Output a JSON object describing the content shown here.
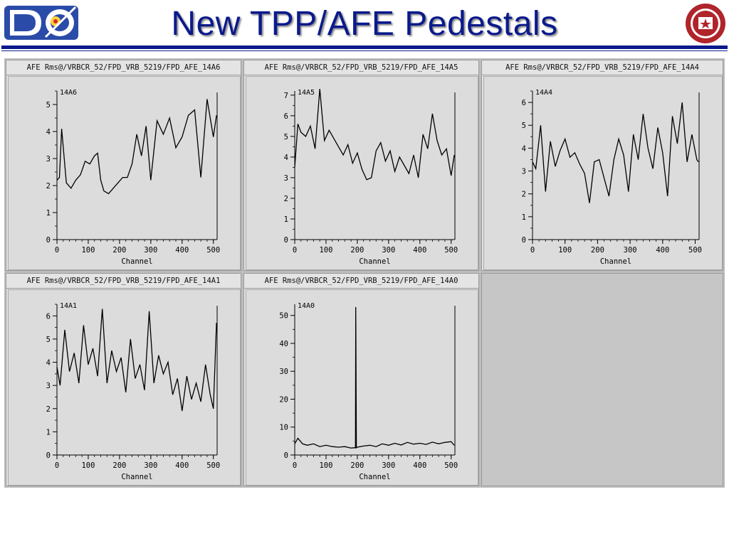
{
  "page": {
    "title": "New TPP/AFE Pedestals",
    "colors": {
      "title": "#0a1a8c",
      "rule": "#0a1a8c",
      "panel": "#e4e4e4",
      "empty_panel": "#c6c6c6"
    },
    "logos": [
      "d0-experiment-logo",
      "university-seal"
    ]
  },
  "chart_data": [
    {
      "type": "line",
      "window_title": "AFE Rms@/VRBCR_52/FPD_VRB_5219/FPD_AFE_14A6",
      "series": [
        {
          "name": "14A6",
          "x": [
            0,
            8,
            15,
            30,
            45,
            60,
            75,
            90,
            105,
            120,
            130,
            140,
            150,
            165,
            180,
            195,
            210,
            225,
            240,
            255,
            270,
            285,
            300,
            320,
            340,
            360,
            380,
            400,
            420,
            440,
            460,
            480,
            500,
            510
          ],
          "values": [
            2.2,
            2.3,
            4.1,
            2.1,
            1.9,
            2.2,
            2.4,
            2.9,
            2.8,
            3.1,
            3.2,
            2.2,
            1.8,
            1.7,
            1.9,
            2.1,
            2.3,
            2.3,
            2.8,
            3.9,
            3.1,
            4.2,
            2.2,
            4.4,
            3.9,
            4.5,
            3.4,
            3.8,
            4.6,
            4.8,
            2.3,
            5.2,
            3.8,
            4.6
          ]
        }
      ],
      "xlabel": "Channel",
      "ylabel": "",
      "xlim": [
        0,
        512
      ],
      "ylim": [
        0,
        5.5
      ],
      "xticks": [
        0,
        100,
        200,
        300,
        400,
        500
      ],
      "yticks": [
        0,
        1,
        2,
        3,
        4,
        5
      ],
      "grid": false
    },
    {
      "type": "line",
      "window_title": "AFE Rms@/VRBCR_52/FPD_VRB_5219/FPD_AFE_14A5",
      "series": [
        {
          "name": "14A5",
          "x": [
            0,
            10,
            20,
            35,
            50,
            65,
            80,
            95,
            110,
            125,
            140,
            155,
            170,
            185,
            200,
            215,
            230,
            245,
            260,
            275,
            290,
            305,
            320,
            335,
            350,
            365,
            380,
            395,
            410,
            425,
            440,
            455,
            470,
            485,
            500,
            510
          ],
          "values": [
            3.5,
            5.6,
            5.2,
            5.0,
            5.5,
            4.4,
            7.3,
            4.8,
            5.3,
            4.9,
            4.5,
            4.1,
            4.6,
            3.7,
            4.2,
            3.4,
            2.9,
            3.0,
            4.3,
            4.7,
            3.8,
            4.3,
            3.3,
            4.0,
            3.6,
            3.2,
            4.1,
            3.0,
            5.1,
            4.4,
            6.1,
            4.8,
            4.1,
            4.4,
            3.1,
            4.1
          ]
        }
      ],
      "xlabel": "Channel",
      "ylabel": "",
      "xlim": [
        0,
        512
      ],
      "ylim": [
        0,
        7.2
      ],
      "xticks": [
        0,
        100,
        200,
        300,
        400,
        500
      ],
      "yticks": [
        0,
        1,
        2,
        3,
        4,
        5,
        6,
        7
      ],
      "grid": false
    },
    {
      "type": "line",
      "window_title": "AFE Rms@/VRBCR_52/FPD_VRB_5219/FPD_AFE_14A4",
      "series": [
        {
          "name": "14A4",
          "x": [
            0,
            10,
            25,
            40,
            55,
            70,
            85,
            100,
            115,
            130,
            145,
            160,
            175,
            190,
            205,
            220,
            235,
            250,
            265,
            280,
            295,
            310,
            325,
            340,
            355,
            370,
            385,
            400,
            415,
            430,
            445,
            460,
            475,
            490,
            505,
            510
          ],
          "values": [
            3.4,
            3.1,
            5.0,
            2.1,
            4.3,
            3.2,
            3.9,
            4.4,
            3.6,
            3.8,
            3.3,
            2.9,
            1.6,
            3.4,
            3.5,
            2.7,
            1.9,
            3.5,
            4.4,
            3.7,
            2.1,
            4.6,
            3.5,
            5.5,
            4.0,
            3.1,
            4.9,
            3.8,
            1.9,
            5.4,
            4.2,
            6.0,
            3.4,
            4.6,
            3.5,
            3.4
          ]
        }
      ],
      "xlabel": "Channel",
      "ylabel": "",
      "xlim": [
        0,
        512
      ],
      "ylim": [
        0,
        6.5
      ],
      "xticks": [
        0,
        100,
        200,
        300,
        400,
        500
      ],
      "yticks": [
        0,
        1,
        2,
        3,
        4,
        5,
        6
      ],
      "grid": false
    },
    {
      "type": "line",
      "window_title": "AFE Rms@/VRBCR_52/FPD_VRB_5219/FPD_AFE_14A1",
      "series": [
        {
          "name": "14A1",
          "x": [
            0,
            10,
            25,
            40,
            55,
            70,
            85,
            100,
            115,
            130,
            145,
            160,
            175,
            190,
            205,
            220,
            235,
            250,
            265,
            280,
            295,
            310,
            325,
            340,
            355,
            370,
            385,
            400,
            415,
            430,
            445,
            460,
            475,
            490,
            500,
            510
          ],
          "values": [
            3.8,
            3.0,
            5.4,
            3.6,
            4.4,
            3.1,
            5.6,
            3.9,
            4.6,
            3.4,
            6.3,
            3.1,
            4.5,
            3.6,
            4.2,
            2.7,
            5.0,
            3.3,
            3.9,
            2.8,
            6.2,
            3.1,
            4.3,
            3.5,
            4.0,
            2.6,
            3.3,
            1.9,
            3.4,
            2.4,
            3.1,
            2.3,
            3.9,
            2.6,
            2.0,
            5.7
          ]
        }
      ],
      "xlabel": "Channel",
      "ylabel": "",
      "xlim": [
        0,
        512
      ],
      "ylim": [
        0,
        6.5
      ],
      "xticks": [
        0,
        100,
        200,
        300,
        400,
        500
      ],
      "yticks": [
        0,
        1,
        2,
        3,
        4,
        5,
        6
      ],
      "grid": false
    },
    {
      "type": "line",
      "window_title": "AFE Rms@/VRBCR_52/FPD_VRB_5219/FPD_AFE_14A0",
      "series": [
        {
          "name": "14A0",
          "x": [
            0,
            10,
            25,
            40,
            60,
            80,
            100,
            120,
            140,
            160,
            180,
            190,
            194,
            195,
            197,
            200,
            220,
            240,
            260,
            280,
            300,
            320,
            340,
            360,
            380,
            400,
            420,
            440,
            460,
            480,
            500,
            510
          ],
          "values": [
            4,
            6,
            4,
            3.5,
            4,
            3,
            3.5,
            3,
            2.8,
            3,
            2.5,
            2.6,
            2.6,
            53,
            2.6,
            2.8,
            3.2,
            3.5,
            3.0,
            4.0,
            3.5,
            4.2,
            3.6,
            4.5,
            3.9,
            4.2,
            3.8,
            4.6,
            4.0,
            4.5,
            4.8,
            3.5
          ]
        }
      ],
      "xlabel": "Channel",
      "ylabel": "",
      "xlim": [
        0,
        512
      ],
      "ylim": [
        0,
        54
      ],
      "xticks": [
        0,
        100,
        200,
        300,
        400,
        500
      ],
      "yticks": [
        0,
        10,
        20,
        30,
        40,
        50
      ],
      "grid": false
    }
  ]
}
